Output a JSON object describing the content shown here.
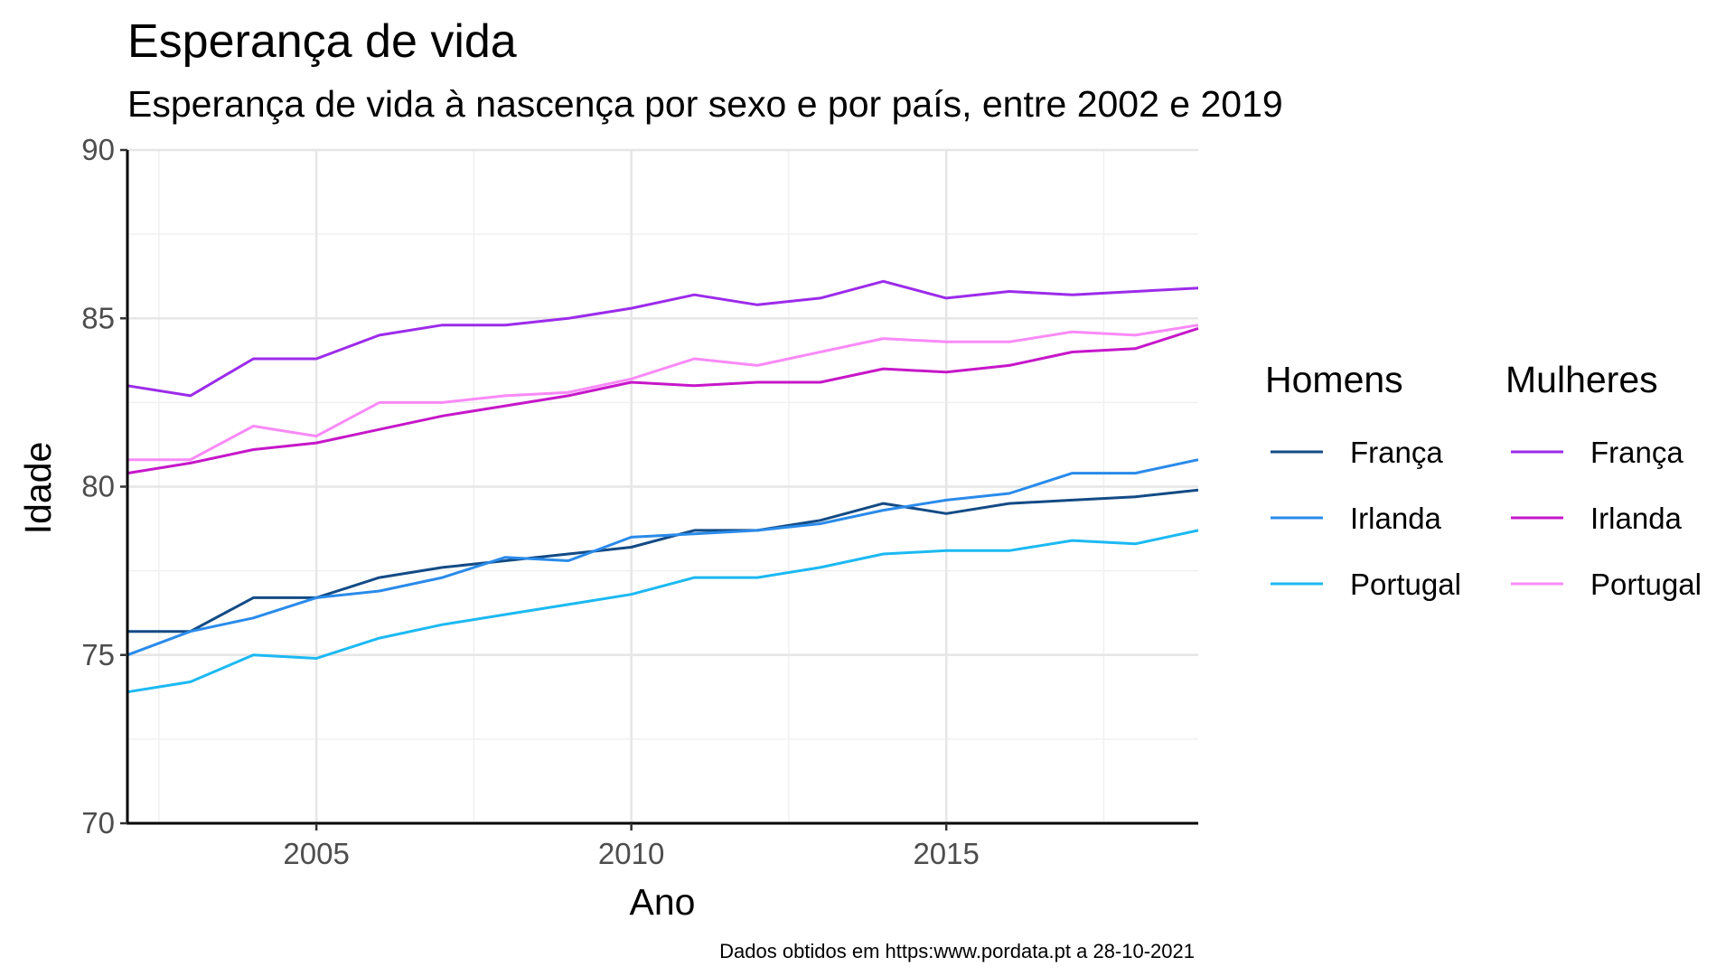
{
  "chart_data": {
    "type": "line",
    "title": "Esperança de vida",
    "subtitle": "Esperança de vida à nascença por sexo e por país, entre 2002 e 2019",
    "xlabel": "Ano",
    "ylabel": "Idade",
    "caption": "Dados obtidos em https:www.pordata.pt a 28-10-2021",
    "xlim": [
      2002,
      2019
    ],
    "ylim": [
      70,
      90
    ],
    "xticks": [
      2005,
      2010,
      2015
    ],
    "yticks": [
      70,
      75,
      80,
      85,
      90
    ],
    "grid": true,
    "legend_position": "right",
    "x": [
      2002,
      2003,
      2004,
      2005,
      2006,
      2007,
      2008,
      2009,
      2010,
      2011,
      2012,
      2013,
      2014,
      2015,
      2016,
      2017,
      2018,
      2019
    ],
    "groups": [
      {
        "name": "Homens",
        "series": [
          {
            "name": "França",
            "color": "#134b85",
            "values": [
              75.7,
              75.7,
              76.7,
              76.7,
              77.3,
              77.6,
              77.8,
              78.0,
              78.2,
              78.7,
              78.7,
              79.0,
              79.5,
              79.2,
              79.5,
              79.6,
              79.7,
              79.9
            ]
          },
          {
            "name": "Irlanda",
            "color": "#2a8bea",
            "values": [
              75.0,
              75.7,
              76.1,
              76.7,
              76.9,
              77.3,
              77.9,
              77.8,
              78.5,
              78.6,
              78.7,
              78.9,
              79.3,
              79.6,
              79.8,
              80.4,
              80.4,
              80.8
            ]
          },
          {
            "name": "Portugal",
            "color": "#1cb9f2",
            "values": [
              73.9,
              74.2,
              75.0,
              74.9,
              75.5,
              75.9,
              76.2,
              76.5,
              76.8,
              77.3,
              77.3,
              77.6,
              78.0,
              78.1,
              78.1,
              78.4,
              78.3,
              78.7
            ]
          }
        ]
      },
      {
        "name": "Mulheres",
        "series": [
          {
            "name": "França",
            "color": "#9c2bea",
            "values": [
              83.0,
              82.7,
              83.8,
              83.8,
              84.5,
              84.8,
              84.8,
              85.0,
              85.3,
              85.7,
              85.4,
              85.6,
              86.1,
              85.6,
              85.8,
              85.7,
              85.8,
              85.9
            ]
          },
          {
            "name": "Irlanda",
            "color": "#c617c9",
            "values": [
              80.4,
              80.7,
              81.1,
              81.3,
              81.7,
              82.1,
              82.4,
              82.7,
              83.1,
              83.0,
              83.1,
              83.1,
              83.5,
              83.4,
              83.6,
              84.0,
              84.1,
              84.7
            ]
          },
          {
            "name": "Portugal",
            "color": "#f98af7",
            "values": [
              80.8,
              80.8,
              81.8,
              81.5,
              82.5,
              82.5,
              82.7,
              82.8,
              83.2,
              83.8,
              83.6,
              84.0,
              84.4,
              84.3,
              84.3,
              84.6,
              84.5,
              84.8
            ]
          }
        ]
      }
    ]
  }
}
